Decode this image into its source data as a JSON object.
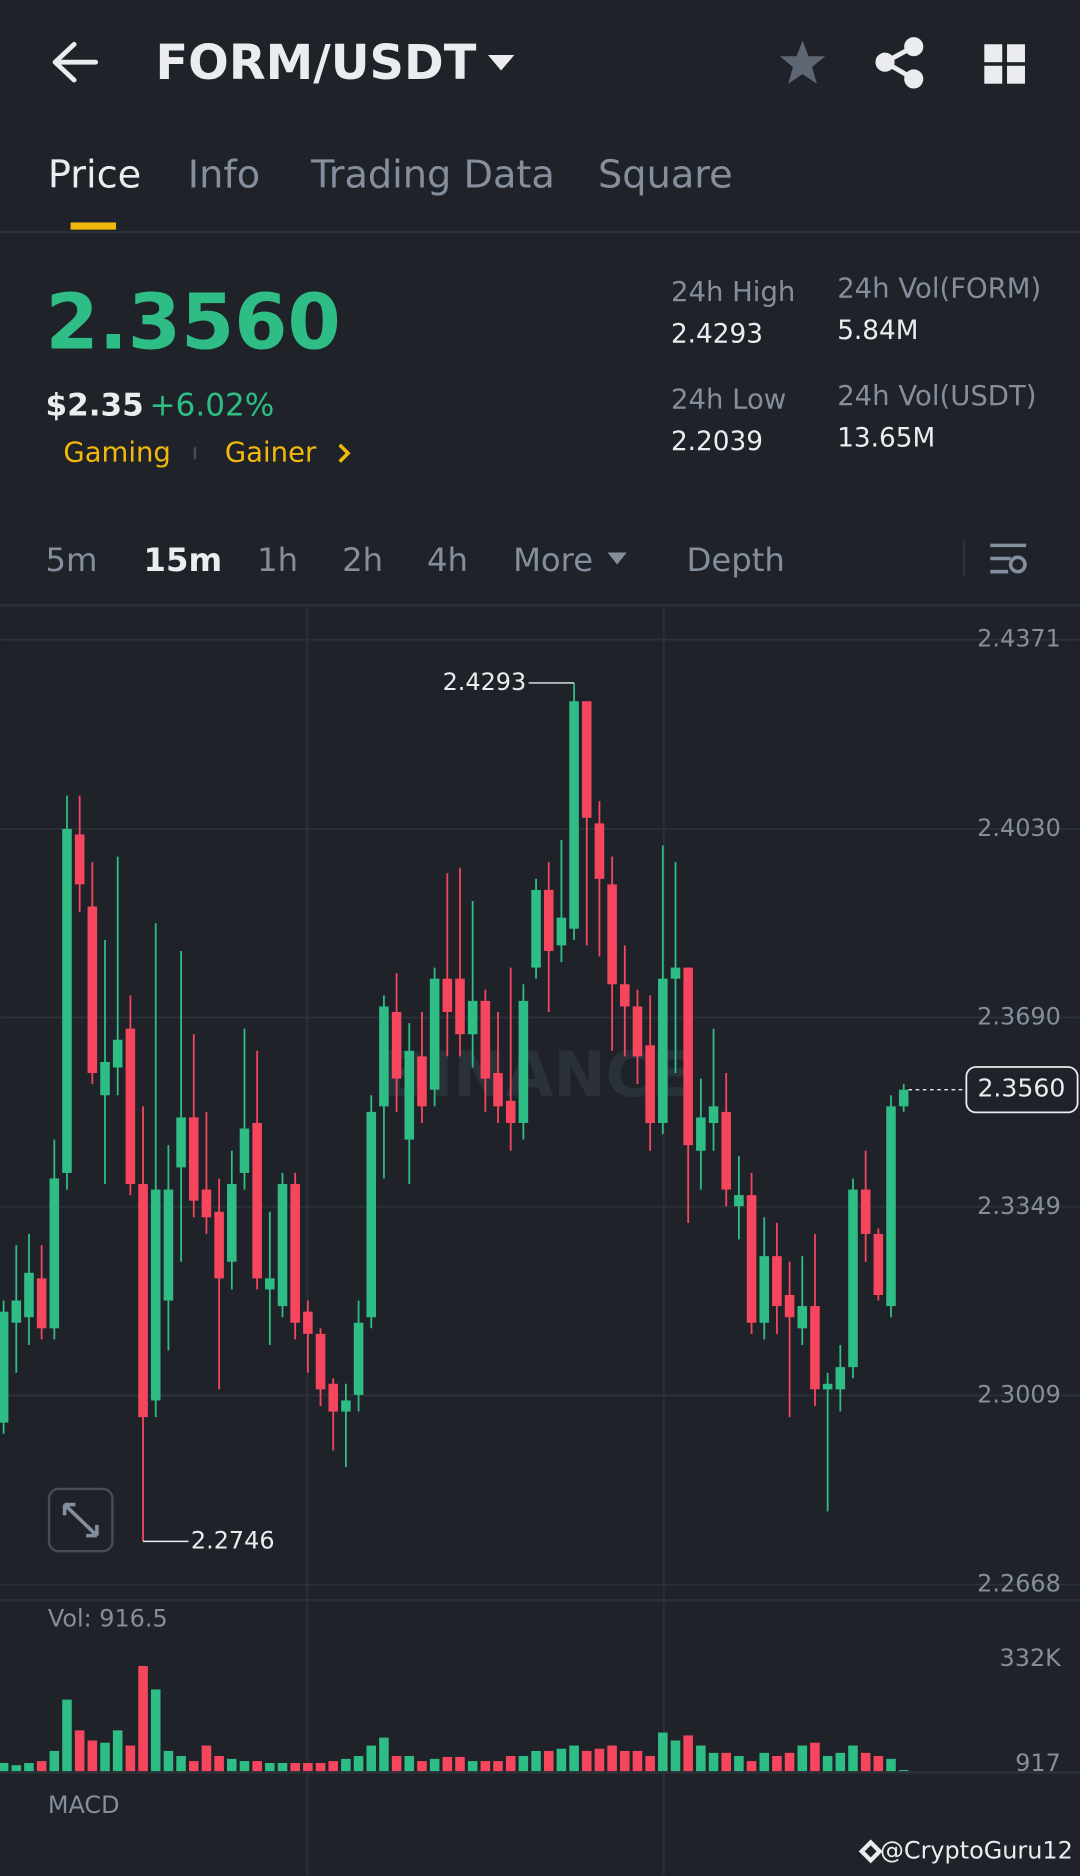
{
  "header": {
    "pair": "FORM/USDT"
  },
  "tabs": [
    "Price",
    "Info",
    "Trading Data",
    "Square"
  ],
  "ticker": {
    "price": "2.3560",
    "fiat": "$2.35",
    "change": "+6.02%",
    "tags": [
      "Gaming",
      "Gainer"
    ],
    "stats": [
      {
        "label": "24h High",
        "value": "2.4293"
      },
      {
        "label": "24h Vol(FORM)",
        "value": "5.84M"
      },
      {
        "label": "24h Low",
        "value": "2.2039"
      },
      {
        "label": "24h Vol(USDT)",
        "value": "13.65M"
      }
    ]
  },
  "intervals": [
    "5m",
    "15m",
    "1h",
    "2h",
    "4h",
    "More",
    "Depth"
  ],
  "chart_data": {
    "type": "candlestick",
    "watermark": "BINANCE",
    "up_color": "#2ebd85",
    "down_color": "#f6465d",
    "ylim": [
      2.264,
      2.4431
    ],
    "yticks": [
      2.4371,
      {
        "value": 2.403,
        "label": "2.4030"
      },
      {
        "value": 2.369,
        "label": "2.3690"
      },
      2.3349,
      2.3009,
      2.2668
    ],
    "last_price": {
      "value": 2.356,
      "label": "2.3560"
    },
    "candles": [
      {
        "open": 2.296,
        "high": 2.318,
        "low": 2.294,
        "close": 2.316
      },
      {
        "open": 2.314,
        "high": 2.328,
        "low": 2.305,
        "close": 2.318
      },
      {
        "open": 2.315,
        "high": 2.33,
        "low": 2.31,
        "close": 2.323
      },
      {
        "open": 2.322,
        "high": 2.328,
        "low": 2.311,
        "close": 2.313
      },
      {
        "open": 2.313,
        "high": 2.347,
        "low": 2.311,
        "close": 2.34
      },
      {
        "open": 2.341,
        "high": 2.409,
        "low": 2.338,
        "close": 2.403
      },
      {
        "open": 2.402,
        "high": 2.409,
        "low": 2.388,
        "close": 2.393
      },
      {
        "open": 2.389,
        "high": 2.397,
        "low": 2.357,
        "close": 2.359
      },
      {
        "open": 2.355,
        "high": 2.383,
        "low": 2.339,
        "close": 2.361
      },
      {
        "open": 2.36,
        "high": 2.398,
        "low": 2.355,
        "close": 2.365
      },
      {
        "open": 2.367,
        "high": 2.373,
        "low": 2.337,
        "close": 2.339
      },
      {
        "open": 2.339,
        "high": 2.353,
        "low": 2.2746,
        "close": 2.297
      },
      {
        "open": 2.3,
        "high": 2.386,
        "low": 2.297,
        "close": 2.338
      },
      {
        "open": 2.318,
        "high": 2.346,
        "low": 2.309,
        "close": 2.338
      },
      {
        "open": 2.342,
        "high": 2.381,
        "low": 2.325,
        "close": 2.351
      },
      {
        "open": 2.351,
        "high": 2.366,
        "low": 2.333,
        "close": 2.336
      },
      {
        "open": 2.338,
        "high": 2.352,
        "low": 2.33,
        "close": 2.333
      },
      {
        "open": 2.334,
        "high": 2.34,
        "low": 2.302,
        "close": 2.322
      },
      {
        "open": 2.325,
        "high": 2.345,
        "low": 2.32,
        "close": 2.339
      },
      {
        "open": 2.341,
        "high": 2.367,
        "low": 2.338,
        "close": 2.349
      },
      {
        "open": 2.35,
        "high": 2.363,
        "low": 2.32,
        "close": 2.322
      },
      {
        "open": 2.32,
        "high": 2.334,
        "low": 2.31,
        "close": 2.322
      },
      {
        "open": 2.317,
        "high": 2.341,
        "low": 2.315,
        "close": 2.339
      },
      {
        "open": 2.339,
        "high": 2.341,
        "low": 2.311,
        "close": 2.314
      },
      {
        "open": 2.316,
        "high": 2.318,
        "low": 2.305,
        "close": 2.312
      },
      {
        "open": 2.312,
        "high": 2.313,
        "low": 2.299,
        "close": 2.302
      },
      {
        "open": 2.303,
        "high": 2.304,
        "low": 2.291,
        "close": 2.298
      },
      {
        "open": 2.298,
        "high": 2.303,
        "low": 2.288,
        "close": 2.3
      },
      {
        "open": 2.301,
        "high": 2.318,
        "low": 2.298,
        "close": 2.314
      },
      {
        "open": 2.315,
        "high": 2.355,
        "low": 2.313,
        "close": 2.352
      },
      {
        "open": 2.353,
        "high": 2.373,
        "low": 2.34,
        "close": 2.371
      },
      {
        "open": 2.37,
        "high": 2.377,
        "low": 2.352,
        "close": 2.358
      },
      {
        "open": 2.347,
        "high": 2.368,
        "low": 2.339,
        "close": 2.363
      },
      {
        "open": 2.362,
        "high": 2.37,
        "low": 2.35,
        "close": 2.353
      },
      {
        "open": 2.356,
        "high": 2.378,
        "low": 2.353,
        "close": 2.376
      },
      {
        "open": 2.376,
        "high": 2.395,
        "low": 2.362,
        "close": 2.37
      },
      {
        "open": 2.376,
        "high": 2.396,
        "low": 2.362,
        "close": 2.366
      },
      {
        "open": 2.366,
        "high": 2.39,
        "low": 2.36,
        "close": 2.372
      },
      {
        "open": 2.372,
        "high": 2.374,
        "low": 2.352,
        "close": 2.358
      },
      {
        "open": 2.359,
        "high": 2.37,
        "low": 2.35,
        "close": 2.353
      },
      {
        "open": 2.354,
        "high": 2.378,
        "low": 2.345,
        "close": 2.35
      },
      {
        "open": 2.35,
        "high": 2.375,
        "low": 2.347,
        "close": 2.372
      },
      {
        "open": 2.378,
        "high": 2.394,
        "low": 2.376,
        "close": 2.392
      },
      {
        "open": 2.392,
        "high": 2.397,
        "low": 2.37,
        "close": 2.381
      },
      {
        "open": 2.382,
        "high": 2.401,
        "low": 2.379,
        "close": 2.387
      },
      {
        "open": 2.385,
        "high": 2.4293,
        "low": 2.383,
        "close": 2.426
      },
      {
        "open": 2.426,
        "high": 2.426,
        "low": 2.382,
        "close": 2.405
      },
      {
        "open": 2.404,
        "high": 2.408,
        "low": 2.38,
        "close": 2.394
      },
      {
        "open": 2.393,
        "high": 2.398,
        "low": 2.363,
        "close": 2.375
      },
      {
        "open": 2.375,
        "high": 2.382,
        "low": 2.362,
        "close": 2.371
      },
      {
        "open": 2.371,
        "high": 2.374,
        "low": 2.357,
        "close": 2.362
      },
      {
        "open": 2.364,
        "high": 2.373,
        "low": 2.345,
        "close": 2.35
      },
      {
        "open": 2.35,
        "high": 2.4,
        "low": 2.348,
        "close": 2.376
      },
      {
        "open": 2.376,
        "high": 2.397,
        "low": 2.359,
        "close": 2.378
      },
      {
        "open": 2.378,
        "high": 2.378,
        "low": 2.332,
        "close": 2.346
      },
      {
        "open": 2.345,
        "high": 2.358,
        "low": 2.338,
        "close": 2.351
      },
      {
        "open": 2.35,
        "high": 2.367,
        "low": 2.345,
        "close": 2.353
      },
      {
        "open": 2.352,
        "high": 2.359,
        "low": 2.335,
        "close": 2.338
      },
      {
        "open": 2.335,
        "high": 2.344,
        "low": 2.329,
        "close": 2.337
      },
      {
        "open": 2.337,
        "high": 2.341,
        "low": 2.312,
        "close": 2.314
      },
      {
        "open": 2.314,
        "high": 2.333,
        "low": 2.311,
        "close": 2.326
      },
      {
        "open": 2.326,
        "high": 2.332,
        "low": 2.312,
        "close": 2.317
      },
      {
        "open": 2.319,
        "high": 2.325,
        "low": 2.297,
        "close": 2.315
      },
      {
        "open": 2.313,
        "high": 2.326,
        "low": 2.31,
        "close": 2.317
      },
      {
        "open": 2.317,
        "high": 2.33,
        "low": 2.299,
        "close": 2.302
      },
      {
        "open": 2.302,
        "high": 2.305,
        "low": 2.28,
        "close": 2.303
      },
      {
        "open": 2.302,
        "high": 2.31,
        "low": 2.298,
        "close": 2.306
      },
      {
        "open": 2.306,
        "high": 2.34,
        "low": 2.304,
        "close": 2.338
      },
      {
        "open": 2.338,
        "high": 2.345,
        "low": 2.325,
        "close": 2.33
      },
      {
        "open": 2.33,
        "high": 2.331,
        "low": 2.318,
        "close": 2.319
      },
      {
        "open": 2.317,
        "high": 2.355,
        "low": 2.315,
        "close": 2.353
      },
      {
        "open": 2.353,
        "high": 2.357,
        "low": 2.352,
        "close": 2.356
      }
    ],
    "volume_label": "Vol: 916.5",
    "volume": [
      26000,
      19000,
      26000,
      32000,
      64000,
      226000,
      129000,
      97000,
      90000,
      129000,
      81000,
      332000,
      258000,
      64000,
      48000,
      32000,
      81000,
      48000,
      39000,
      32000,
      32000,
      26000,
      26000,
      26000,
      26000,
      26000,
      32000,
      39000,
      48000,
      81000,
      106000,
      48000,
      48000,
      32000,
      39000,
      45000,
      45000,
      32000,
      32000,
      32000,
      48000,
      48000,
      64000,
      64000,
      71000,
      81000,
      64000,
      71000,
      81000,
      64000,
      64000,
      48000,
      122000,
      97000,
      113000,
      81000,
      58000,
      58000,
      48000,
      32000,
      58000,
      48000,
      58000,
      81000,
      90000,
      48000,
      58000,
      81000,
      58000,
      48000,
      39000,
      916.5
    ],
    "vlim": [
      0,
      332000
    ],
    "vticks": [
      {
        "value": 332000,
        "label": "332K"
      },
      917
    ]
  },
  "footer": {
    "indicator": "MACD",
    "credit": "@CryptoGuru12"
  }
}
